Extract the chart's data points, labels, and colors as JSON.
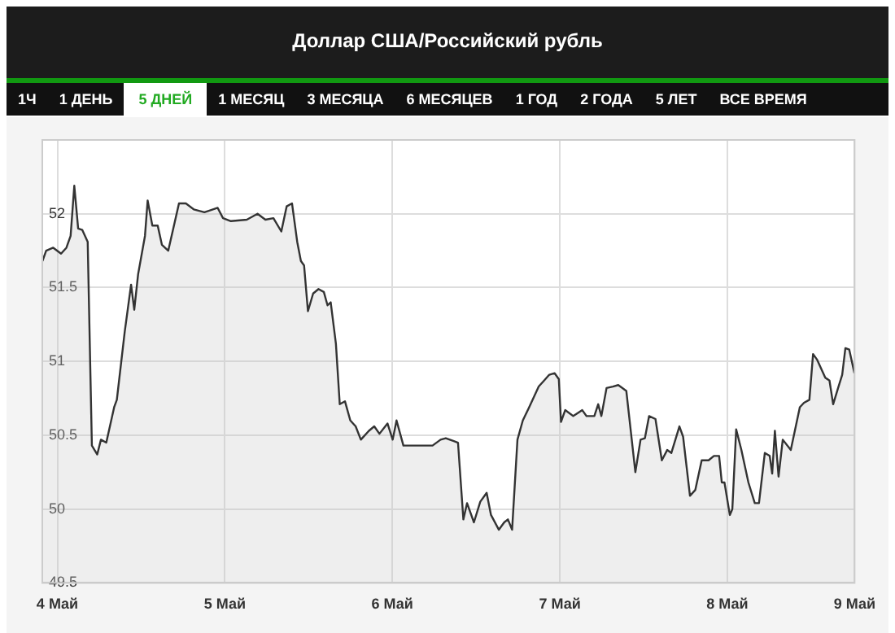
{
  "chart_data": {
    "type": "area",
    "title": "Доллар США/Российский рубль",
    "annotations": [
      "1Ч",
      "1 ДЕНЬ",
      "5 ДНЕЙ",
      "1 МЕСЯЦ",
      "3 МЕСЯЦА",
      "6 МЕСЯЦЕВ",
      "1 ГОД",
      "2 ГОДА",
      "5 ЛЕТ",
      "ВСЕ ВРЕМЯ"
    ],
    "x": [
      3.911,
      3.933,
      3.975,
      4.022,
      4.054,
      4.079,
      4.101,
      4.124,
      4.149,
      4.181,
      4.206,
      4.238,
      4.26,
      4.292,
      4.339,
      4.355,
      4.402,
      4.44,
      4.459,
      4.482,
      4.523,
      4.539,
      4.567,
      4.599,
      4.624,
      4.662,
      4.688,
      4.726,
      4.767,
      4.814,
      4.878,
      4.957,
      4.989,
      5.036,
      5.131,
      5.195,
      5.242,
      5.29,
      5.337,
      5.369,
      5.401,
      5.432,
      5.454,
      5.473,
      5.496,
      5.527,
      5.559,
      5.591,
      5.613,
      5.632,
      5.663,
      5.686,
      5.717,
      5.749,
      5.781,
      5.812,
      5.86,
      5.892,
      5.923,
      5.971,
      6.002,
      6.025,
      6.066,
      6.145,
      6.24,
      6.288,
      6.319,
      6.367,
      6.392,
      6.424,
      6.446,
      6.487,
      6.525,
      6.563,
      6.589,
      6.636,
      6.668,
      6.69,
      6.715,
      6.747,
      6.779,
      6.817,
      6.874,
      6.906,
      6.937,
      6.969,
      6.994,
      7.007,
      7.032,
      7.08,
      7.134,
      7.159,
      7.206,
      7.229,
      7.248,
      7.279,
      7.317,
      7.349,
      7.397,
      7.451,
      7.482,
      7.508,
      7.533,
      7.571,
      7.609,
      7.641,
      7.666,
      7.714,
      7.736,
      7.777,
      7.809,
      7.847,
      7.888,
      7.92,
      7.951,
      7.967,
      7.983,
      8.015,
      8.03,
      8.053,
      8.084,
      8.126,
      8.164,
      8.189,
      8.224,
      8.253,
      8.268,
      8.284,
      8.306,
      8.331,
      8.379,
      8.433,
      8.458,
      8.49,
      8.512,
      8.537,
      8.585,
      8.61,
      8.632,
      8.664,
      8.686,
      8.705,
      8.728,
      8.759
    ],
    "series": [
      {
        "color": "#333333",
        "values": [
          51.68,
          51.75,
          51.77,
          51.73,
          51.77,
          51.85,
          52.19,
          51.9,
          51.89,
          51.81,
          50.43,
          50.37,
          50.47,
          50.45,
          50.69,
          50.74,
          51.2,
          51.52,
          51.35,
          51.59,
          51.85,
          52.09,
          51.92,
          51.92,
          51.79,
          51.75,
          51.88,
          52.07,
          52.07,
          52.03,
          52.01,
          52.04,
          51.97,
          51.95,
          51.96,
          52.0,
          51.96,
          51.97,
          51.88,
          52.05,
          52.07,
          51.81,
          51.68,
          51.65,
          51.34,
          51.46,
          51.49,
          51.47,
          51.38,
          51.4,
          51.12,
          50.71,
          50.73,
          50.6,
          50.56,
          50.47,
          50.53,
          50.56,
          50.51,
          50.58,
          50.47,
          50.6,
          50.43,
          50.43,
          50.43,
          50.47,
          50.48,
          50.46,
          50.45,
          49.93,
          50.04,
          49.91,
          50.05,
          50.11,
          49.96,
          49.86,
          49.91,
          49.93,
          49.86,
          50.47,
          50.6,
          50.69,
          50.83,
          50.87,
          50.91,
          50.92,
          50.88,
          50.59,
          50.67,
          50.63,
          50.67,
          50.63,
          50.63,
          50.71,
          50.63,
          50.82,
          50.83,
          50.84,
          50.8,
          50.25,
          50.47,
          50.48,
          50.63,
          50.61,
          50.33,
          50.4,
          50.38,
          50.56,
          50.49,
          50.09,
          50.13,
          50.33,
          50.33,
          50.36,
          50.36,
          50.18,
          50.18,
          49.96,
          50.0,
          50.54,
          50.4,
          50.18,
          50.04,
          50.04,
          50.38,
          50.36,
          50.24,
          50.53,
          50.22,
          50.47,
          50.4,
          50.69,
          50.72,
          50.74,
          51.05,
          51.01,
          50.89,
          50.87,
          50.71,
          50.83,
          50.91,
          51.09,
          51.08,
          50.92
        ]
      }
    ],
    "xlim": [
      3.91,
      8.76
    ],
    "xticks": [
      {
        "value": 4,
        "label": "4 Май"
      },
      {
        "value": 5,
        "label": "5 Май"
      },
      {
        "value": 6,
        "label": "6 Май"
      },
      {
        "value": 7,
        "label": "7 Май"
      },
      {
        "value": 8,
        "label": "8 Май"
      },
      {
        "value": 8.76,
        "label": "9 Май"
      }
    ],
    "ylim": [
      49.5,
      52.5
    ],
    "yticks": [
      49.5,
      50,
      50.5,
      51,
      51.5,
      52
    ],
    "grid": true
  }
}
